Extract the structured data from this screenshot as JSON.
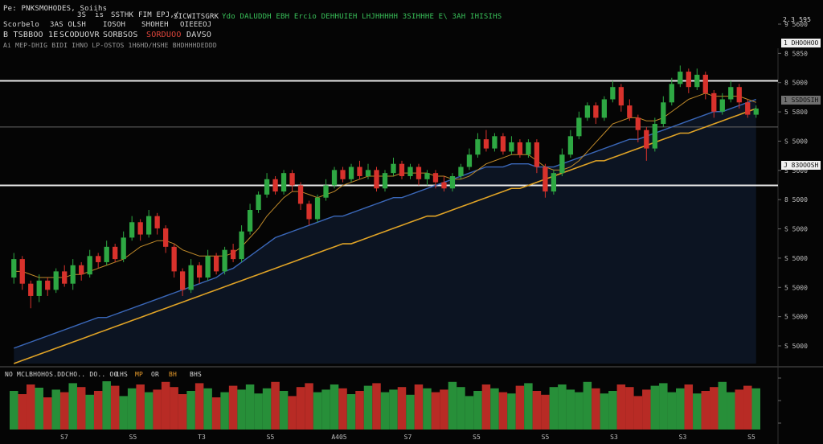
{
  "header": {
    "row1_left": "Pe: PNKSMOHODES, Soiihs",
    "row1_mid1": "3S",
    "row1_mid2": "is",
    "row1_mid3": "SSTHK",
    "row1_mid4": "FIM EPJ,/",
    "row1_title": "SICWITSGRK",
    "row1_green": "Ydo DALUDDH EBH Ercio DEHHUIEH LHJHHHHH 3SIHHHE E\\ 3AH IHISIHS",
    "row2_a": "Scorbelo",
    "row2_b": "3AS OLSH",
    "row2_c": "IOSOH",
    "row2_d": "SHOHEH",
    "row2_e": "OIEEEOJ",
    "row3_a": "B TSBBOO 1E",
    "row3_b": "SCODUOVR",
    "row3_c": "SORBSOS",
    "row3_d": "SORDUOO",
    "row3_e": "DAVSO",
    "row4": "Ai  MEP-DHIG BIDI IHNO LP-OSTOS  1H6HD/HSHE  BHDHHHDEDDD",
    "corner_right": "2.3 595"
  },
  "volume_header": {
    "label": "NO MCLBHOHOS.DDCHO.. DO.. O0",
    "val1": "1HS",
    "val2": "MP",
    "val3": "OR",
    "val4": "BH",
    "val5": "BHS"
  },
  "price_tags": {
    "top_line": "1 DHOOHOO",
    "mid_line": "1 SSDOSIH",
    "last_price": "J 83OOOSH"
  },
  "colors": {
    "up": "#2ea843",
    "down": "#d8322c",
    "ma_fast": "#c08a2a",
    "ma_mid": "#3a67b8",
    "ma_slow": "#e0a326",
    "area": "#0d1626"
  },
  "chart_data": {
    "type": "candlestick",
    "title": "",
    "xlabel": "",
    "ylabel": "",
    "ylim": [
      0,
      100
    ],
    "y_tick_labels": [
      "9 5600",
      "8 5850",
      "8 5000",
      "5 5800",
      "S 5000",
      "S 5000",
      "8 5000",
      "S 5000",
      "S 5000",
      "5 5000",
      "5 5000",
      "S 5000"
    ],
    "x_tick_labels": [
      "S7",
      "S5",
      "T3",
      "S5",
      "A405",
      "S7",
      "S5",
      "S5",
      "S3",
      "S3",
      "S5"
    ],
    "horizontal_lines": [
      92,
      77,
      58
    ],
    "candles": [
      [
        28,
        34,
        26,
        36
      ],
      [
        34,
        26,
        24,
        35
      ],
      [
        26,
        22,
        18,
        27
      ],
      [
        22,
        27,
        20,
        29
      ],
      [
        27,
        24,
        22,
        28
      ],
      [
        24,
        30,
        23,
        31
      ],
      [
        30,
        26,
        25,
        32
      ],
      [
        26,
        32,
        24,
        34
      ],
      [
        32,
        29,
        27,
        33
      ],
      [
        29,
        35,
        28,
        37
      ],
      [
        35,
        33,
        31,
        36
      ],
      [
        33,
        38,
        32,
        40
      ],
      [
        38,
        34,
        33,
        39
      ],
      [
        34,
        41,
        33,
        43
      ],
      [
        41,
        46,
        40,
        48
      ],
      [
        46,
        42,
        40,
        47
      ],
      [
        42,
        48,
        41,
        50
      ],
      [
        48,
        44,
        42,
        49
      ],
      [
        44,
        38,
        36,
        45
      ],
      [
        38,
        30,
        28,
        39
      ],
      [
        30,
        24,
        22,
        31
      ],
      [
        24,
        32,
        23,
        34
      ],
      [
        32,
        28,
        26,
        33
      ],
      [
        28,
        35,
        27,
        37
      ],
      [
        35,
        30,
        29,
        36
      ],
      [
        30,
        37,
        29,
        38
      ],
      [
        37,
        34,
        33,
        39
      ],
      [
        34,
        43,
        33,
        45
      ],
      [
        43,
        50,
        42,
        52
      ],
      [
        50,
        55,
        49,
        56
      ],
      [
        55,
        60,
        54,
        62
      ],
      [
        60,
        56,
        55,
        61
      ],
      [
        56,
        62,
        55,
        63
      ],
      [
        62,
        58,
        56,
        63
      ],
      [
        58,
        52,
        50,
        59
      ],
      [
        52,
        47,
        45,
        53
      ],
      [
        47,
        54,
        46,
        55
      ],
      [
        54,
        58,
        53,
        60
      ],
      [
        58,
        63,
        57,
        64
      ],
      [
        63,
        60,
        59,
        64
      ],
      [
        60,
        64,
        59,
        65
      ],
      [
        64,
        61,
        60,
        66
      ],
      [
        61,
        63,
        60,
        65
      ],
      [
        63,
        57,
        56,
        64
      ],
      [
        57,
        62,
        56,
        63
      ],
      [
        62,
        65,
        61,
        67
      ],
      [
        65,
        61,
        60,
        66
      ],
      [
        61,
        64,
        60,
        65
      ],
      [
        64,
        60,
        58,
        65
      ],
      [
        60,
        62,
        58,
        63
      ],
      [
        62,
        59,
        57,
        63
      ],
      [
        59,
        57,
        56,
        61
      ],
      [
        57,
        61,
        56,
        62
      ],
      [
        61,
        64,
        60,
        65
      ],
      [
        64,
        68,
        63,
        70
      ],
      [
        68,
        73,
        67,
        75
      ],
      [
        73,
        70,
        69,
        76
      ],
      [
        70,
        74,
        69,
        75
      ],
      [
        74,
        69,
        68,
        75
      ],
      [
        69,
        72,
        68,
        74
      ],
      [
        72,
        68,
        67,
        73
      ],
      [
        68,
        72,
        67,
        73
      ],
      [
        72,
        64,
        62,
        73
      ],
      [
        64,
        56,
        54,
        65
      ],
      [
        56,
        62,
        55,
        63
      ],
      [
        62,
        68,
        61,
        70
      ],
      [
        68,
        74,
        67,
        76
      ],
      [
        74,
        80,
        73,
        82
      ],
      [
        80,
        84,
        79,
        85
      ],
      [
        84,
        80,
        78,
        85
      ],
      [
        80,
        86,
        79,
        87
      ],
      [
        86,
        90,
        85,
        92
      ],
      [
        90,
        84,
        82,
        91
      ],
      [
        84,
        80,
        79,
        86
      ],
      [
        80,
        76,
        72,
        81
      ],
      [
        76,
        70,
        66,
        77
      ],
      [
        70,
        78,
        69,
        80
      ],
      [
        78,
        85,
        77,
        87
      ],
      [
        85,
        91,
        84,
        93
      ],
      [
        91,
        95,
        90,
        97
      ],
      [
        95,
        90,
        88,
        96
      ],
      [
        90,
        94,
        89,
        96
      ],
      [
        94,
        88,
        86,
        95
      ],
      [
        88,
        82,
        80,
        89
      ],
      [
        82,
        86,
        81,
        88
      ],
      [
        86,
        90,
        85,
        92
      ],
      [
        90,
        85,
        83,
        91
      ],
      [
        85,
        81,
        80,
        86
      ],
      [
        81,
        83,
        80,
        84
      ]
    ],
    "ma_fast": [
      30,
      30,
      29,
      28,
      28,
      28,
      28,
      29,
      29,
      30,
      31,
      32,
      33,
      34,
      36,
      38,
      39,
      40,
      40,
      39,
      37,
      36,
      35,
      35,
      35,
      35,
      36,
      38,
      41,
      44,
      48,
      51,
      54,
      56,
      56,
      55,
      54,
      55,
      56,
      58,
      59,
      60,
      61,
      61,
      61,
      61,
      62,
      62,
      62,
      62,
      61,
      61,
      60,
      60,
      61,
      63,
      65,
      66,
      67,
      68,
      68,
      68,
      66,
      64,
      63,
      63,
      64,
      66,
      69,
      72,
      75,
      78,
      79,
      80,
      80,
      79,
      79,
      80,
      82,
      84,
      86,
      87,
      88,
      87,
      87,
      87,
      87,
      86,
      85
    ],
    "ma_mid": [
      5,
      6,
      7,
      8,
      9,
      10,
      11,
      12,
      13,
      14,
      15,
      15,
      16,
      17,
      18,
      19,
      20,
      21,
      22,
      23,
      24,
      25,
      26,
      27,
      28,
      30,
      31,
      33,
      35,
      37,
      39,
      41,
      42,
      43,
      44,
      45,
      46,
      47,
      48,
      48,
      49,
      50,
      51,
      52,
      53,
      54,
      54,
      55,
      56,
      57,
      58,
      59,
      60,
      61,
      62,
      63,
      64,
      64,
      64,
      65,
      65,
      65,
      64,
      64,
      64,
      65,
      66,
      67,
      68,
      69,
      70,
      71,
      72,
      73,
      73,
      74,
      75,
      76,
      77,
      78,
      79,
      80,
      81,
      82,
      82,
      83,
      84,
      85,
      86
    ],
    "ma_slow": [
      0,
      1,
      2,
      3,
      4,
      5,
      6,
      7,
      8,
      9,
      10,
      11,
      12,
      13,
      14,
      15,
      16,
      17,
      18,
      19,
      20,
      21,
      22,
      23,
      24,
      25,
      26,
      27,
      28,
      29,
      30,
      31,
      32,
      33,
      34,
      35,
      36,
      37,
      38,
      39,
      39,
      40,
      41,
      42,
      43,
      44,
      45,
      46,
      47,
      48,
      48,
      49,
      50,
      51,
      52,
      53,
      54,
      55,
      56,
      57,
      57,
      58,
      59,
      60,
      61,
      62,
      63,
      64,
      65,
      66,
      66,
      67,
      68,
      69,
      70,
      71,
      72,
      73,
      74,
      75,
      75,
      76,
      77,
      78,
      79,
      80,
      81,
      82,
      83
    ],
    "volume": [
      60,
      55,
      70,
      65,
      50,
      62,
      58,
      72,
      66,
      54,
      60,
      75,
      68,
      52,
      64,
      70,
      58,
      62,
      74,
      66,
      55,
      60,
      72,
      64,
      50,
      58,
      68,
      62,
      70,
      56,
      64,
      74,
      60,
      52,
      66,
      72,
      58,
      62,
      70,
      64,
      55,
      60,
      68,
      72,
      58,
      62,
      66,
      54,
      70,
      64,
      58,
      62,
      74,
      66,
      52,
      60,
      70,
      64,
      58,
      56,
      68,
      72,
      60,
      54,
      66,
      70,
      62,
      58,
      74,
      64,
      56,
      60,
      70,
      66,
      52,
      62,
      68,
      72,
      58,
      64,
      70,
      56,
      60,
      66,
      74,
      58,
      62,
      68,
      64
    ]
  }
}
